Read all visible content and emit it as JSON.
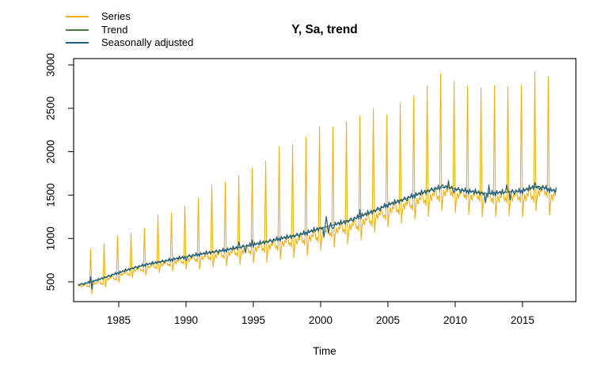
{
  "title": "Y, Sa, trend",
  "chart_data": {
    "type": "line",
    "title": "Y, Sa, trend",
    "xlabel": "Time",
    "ylabel": "",
    "grid": false,
    "legend_position": "top-left",
    "xlim": [
      1981.65,
      2018.97
    ],
    "ylim": [
      272,
      3073
    ],
    "x_ticks": [
      1985,
      1990,
      1995,
      2000,
      2005,
      2010,
      2015
    ],
    "y_ticks": [
      500,
      1000,
      1500,
      2000,
      2500,
      3000
    ],
    "axis_color": "#000000",
    "series": [
      {
        "name": "Series",
        "color": "#EFB111",
        "width": 1.1,
        "points": "monthly",
        "start": 1982.0,
        "step": 0.0833333333,
        "values": [
          462,
          448,
          455,
          440,
          465,
          458,
          472,
          466,
          444,
          456,
          436,
          875,
          360,
          462,
          492,
          468,
          496,
          485,
          514,
          503,
          472,
          483,
          464,
          940,
          440,
          513,
          546,
          520,
          551,
          539,
          569,
          558,
          525,
          539,
          515,
          1030,
          495,
          565,
          597,
          572,
          601,
          590,
          619,
          608,
          576,
          590,
          567,
          1060,
          545,
          614,
          646,
          621,
          651,
          639,
          669,
          658,
          626,
          639,
          616,
          1120,
          575,
          643,
          683,
          652,
          689,
          674,
          711,
          697,
          657,
          674,
          646,
          1270,
          606,
          674,
          713,
          682,
          719,
          705,
          741,
          727,
          688,
          705,
          676,
          1295,
          625,
          699,
          742,
          708,
          748,
          732,
          772,
          757,
          714,
          732,
          702,
          1375,
          643,
          723,
          770,
          733,
          777,
          760,
          803,
          787,
          740,
          760,
          726,
          1460,
          644,
          740,
          796,
          752,
          804,
          784,
          836,
          816,
          760,
          784,
          744,
          1620,
          668,
          765,
          821,
          777,
          829,
          809,
          861,
          841,
          785,
          809,
          769,
          1650,
          683,
          785,
          845,
          798,
          853,
          832,
          887,
          866,
          806,
          832,
          789,
          1720,
          699,
          809,
          873,
          822,
          882,
          859,
          918,
          895,
          831,
          859,
          813,
          1815,
          719,
          834,
          901,
          848,
          911,
          887,
          949,
          925,
          858,
          887,
          839,
          1890,
          724,
          856,
          932,
          872,
          943,
          916,
          987,
          960,
          883,
          916,
          861,
          2060,
          762,
          892,
          968,
          908,
          978,
          951,
          1022,
          995,
          919,
          951,
          897,
          2080,
          779,
          916,
          996,
          933,
          1007,
          979,
          1053,
          1024,
          945,
          979,
          922,
          2170,
          802,
          948,
          1033,
          966,
          1046,
          1015,
          1094,
          1064,
          979,
          1015,
          954,
          2290,
          865,
          1004,
          1085,
          1021,
          1097,
          1068,
          1143,
          1114,
          1033,
          1068,
          1010,
          2280,
          899,
          1042,
          1124,
          1059,
          1136,
          1107,
          1184,
          1154,
          1071,
          1107,
          1047,
          2345,
          934,
          1079,
          1164,
          1097,
          1176,
          1146,
          1224,
          1194,
          1109,
          1146,
          1085,
          2410,
          987,
          1136,
          1223,
          1155,
          1235,
          1204,
          1285,
          1254,
          1167,
          1204,
          1142,
          2500,
          1077,
          1210,
          1287,
          1226,
          1298,
          1270,
          1342,
          1314,
          1237,
          1270,
          1215,
          2425,
          1133,
          1273,
          1355,
          1291,
          1367,
          1337,
          1413,
          1384,
          1302,
          1337,
          1279,
          2560,
          1176,
          1320,
          1404,
          1338,
          1416,
          1386,
          1464,
          1434,
          1350,
          1386,
          1326,
          2640,
          1223,
          1374,
          1462,
          1393,
          1475,
          1443,
          1525,
          1494,
          1406,
          1443,
          1380,
          2760,
          1253,
          1415,
          1510,
          1435,
          1523,
          1489,
          1577,
          1543,
          1449,
          1489,
          1422,
          2900,
          1322,
          1468,
          1553,
          1486,
          1566,
          1535,
          1614,
          1584,
          1499,
          1535,
          1474,
          2810,
          1297,
          1441,
          1524,
          1458,
          1536,
          1506,
          1584,
          1554,
          1470,
          1506,
          1446,
          2755,
          1277,
          1421,
          1504,
          1438,
          1516,
          1486,
          1564,
          1534,
          1450,
          1486,
          1426,
          2735,
          1247,
          1396,
          1483,
          1415,
          1495,
          1464,
          1545,
          1514,
          1427,
          1464,
          1402,
          2760,
          1254,
          1402,
          1488,
          1420,
          1500,
          1470,
          1550,
          1519,
          1433,
          1470,
          1408,
          2755,
          1263,
          1412,
          1498,
          1430,
          1510,
          1479,
          1560,
          1529,
          1442,
          1479,
          1418,
          2770,
          1248,
          1413,
          1509,
          1433,
          1523,
          1488,
          1578,
          1543,
          1447,
          1488,
          1419,
          2925,
          1317,
          1469,
          1557,
          1487,
          1570,
          1538,
          1620,
          1589,
          1500,
          1538,
          1475,
          2860,
          1270,
          1420,
          1508,
          1439,
          1520,
          1489,
          1570
        ]
      },
      {
        "name": "Trend",
        "color": "#457B41",
        "width": 1.2,
        "points": "xy",
        "x": [
          1982.0,
          1983,
          1984,
          1985,
          1986,
          1987,
          1988,
          1989,
          1990,
          1991,
          1992,
          1993,
          1994,
          1995,
          1996,
          1997,
          1998,
          1999,
          2000,
          2001,
          2002,
          2003,
          2004,
          2005,
          2006,
          2007,
          2008,
          2008.5,
          2009,
          2009.4,
          2010,
          2010.5,
          2011,
          2012,
          2012.5,
          2013,
          2014,
          2015,
          2015.7,
          2016.2,
          2016.7,
          2017,
          2017.5
        ],
        "y": [
          465,
          500,
          552,
          605,
          655,
          698,
          728,
          758,
          788,
          818,
          843,
          868,
          898,
          928,
          962,
          998,
          1028,
          1068,
          1118,
          1158,
          1198,
          1258,
          1318,
          1388,
          1438,
          1498,
          1548,
          1572,
          1588,
          1595,
          1570,
          1556,
          1545,
          1522,
          1518,
          1525,
          1535,
          1548,
          1585,
          1600,
          1580,
          1562,
          1545
        ]
      },
      {
        "name": "Seasonally adjusted",
        "color": "#235E83",
        "width": 1.2,
        "points": "derived",
        "base": "Trend",
        "length_of": "Series",
        "start": 1982.0,
        "step": 0.0833333333,
        "offset_pattern": [
          12,
          -18,
          6,
          24,
          -9,
          -30,
          18,
          3,
          -12,
          33,
          -24,
          9,
          -33,
          27,
          -12,
          6,
          15,
          -21,
          36,
          -15,
          -3,
          21,
          -27,
          12
        ],
        "offset_scale": {
          "x": [
            1982,
            1992,
            2000,
            2017.6
          ],
          "v": [
            0.45,
            0.8,
            1.0,
            1.1
          ]
        },
        "offset_overrides": {
          "11": 58,
          "12": -70,
          "96": -55,
          "143": 55,
          "149": -50,
          "155": 50,
          "219": -140,
          "221": 150,
          "223": -85,
          "227": -50,
          "251": 70,
          "324": 60,
          "330": 40,
          "335": -60,
          "363": -135,
          "366": 80,
          "382": 115,
          "385": -75,
          "407": 40,
          "411": -60
        }
      }
    ]
  }
}
